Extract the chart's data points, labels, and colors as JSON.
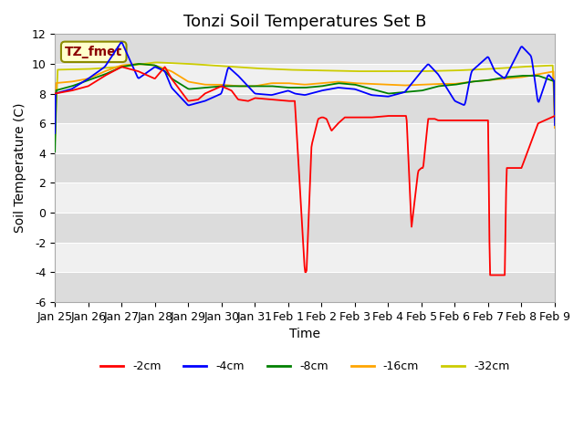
{
  "title": "Tonzi Soil Temperatures Set B",
  "xlabel": "Time",
  "ylabel": "Soil Temperature (C)",
  "ylim": [
    -6,
    12
  ],
  "yticks": [
    -6,
    -4,
    -2,
    0,
    2,
    4,
    6,
    8,
    10,
    12
  ],
  "x_tick_labels": [
    "Jan 25",
    "Jan 26",
    "Jan 27",
    "Jan 28",
    "Jan 29",
    "Jan 30",
    "Jan 31",
    "Feb 1",
    "Feb 2",
    "Feb 3",
    "Feb 4",
    "Feb 5",
    "Feb 6",
    "Feb 7",
    "Feb 8",
    "Feb 9"
  ],
  "annotation_label": "TZ_fmet",
  "annotation_color": "#8B0000",
  "annotation_bg": "#FFFFCC",
  "line_colors": [
    "#FF0000",
    "#0000FF",
    "#008000",
    "#FFA500",
    "#CCCC00"
  ],
  "line_labels": [
    "-2cm",
    "-4cm",
    "-8cm",
    "-16cm",
    "-32cm"
  ],
  "plot_bg": "#F0F0F0",
  "title_fontsize": 13,
  "label_fontsize": 10,
  "tick_fontsize": 9
}
